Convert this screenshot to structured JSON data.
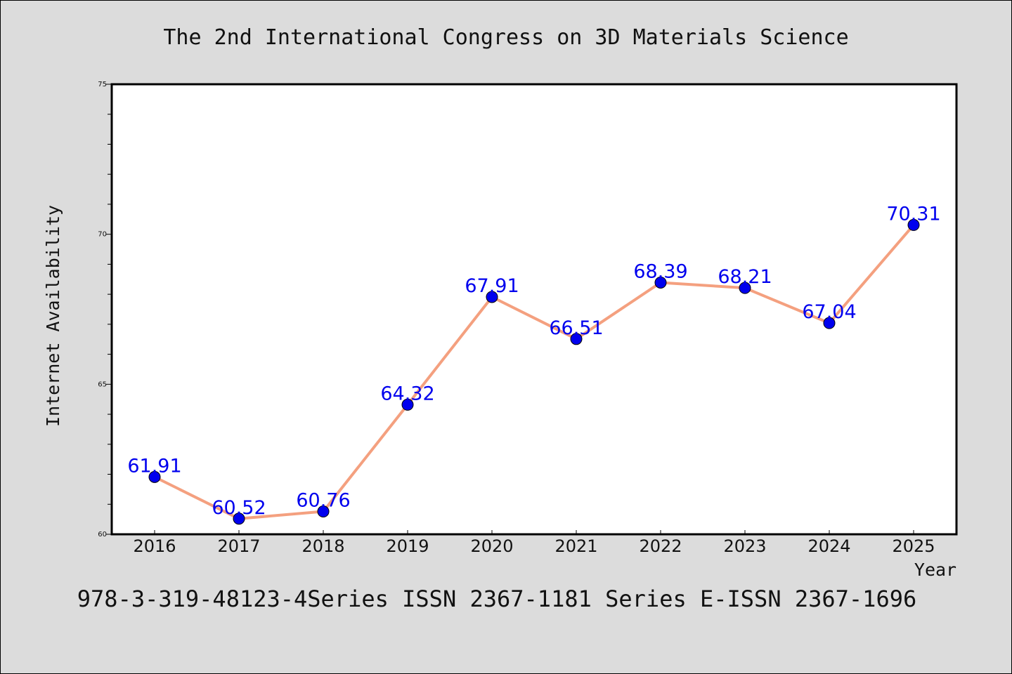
{
  "chart_data": {
    "type": "line",
    "title": "The 2nd International Congress on 3D Materials Science",
    "xlabel": "Year",
    "ylabel": "Internet Availability",
    "categories": [
      "2016",
      "2017",
      "2018",
      "2019",
      "2020",
      "2021",
      "2022",
      "2023",
      "2024",
      "2025"
    ],
    "values": [
      61.91,
      60.52,
      60.76,
      64.32,
      67.91,
      66.51,
      68.39,
      68.21,
      67.04,
      70.31
    ],
    "data_labels": [
      "61.91",
      "60.52",
      "60.76",
      "64.32",
      "67.91",
      "66.51",
      "68.39",
      "68.21",
      "67.04",
      "70.31"
    ],
    "ylim": [
      60,
      75
    ],
    "yticks": [
      "60",
      "65",
      "70",
      "75"
    ],
    "grid": false,
    "legend": "none",
    "line_color": "#f4a07f",
    "marker_color": "#0000ee",
    "label_color": "#0000ee",
    "footer": "978-3-319-48123-4Series ISSN 2367-1181 Series E-ISSN 2367-1696"
  }
}
